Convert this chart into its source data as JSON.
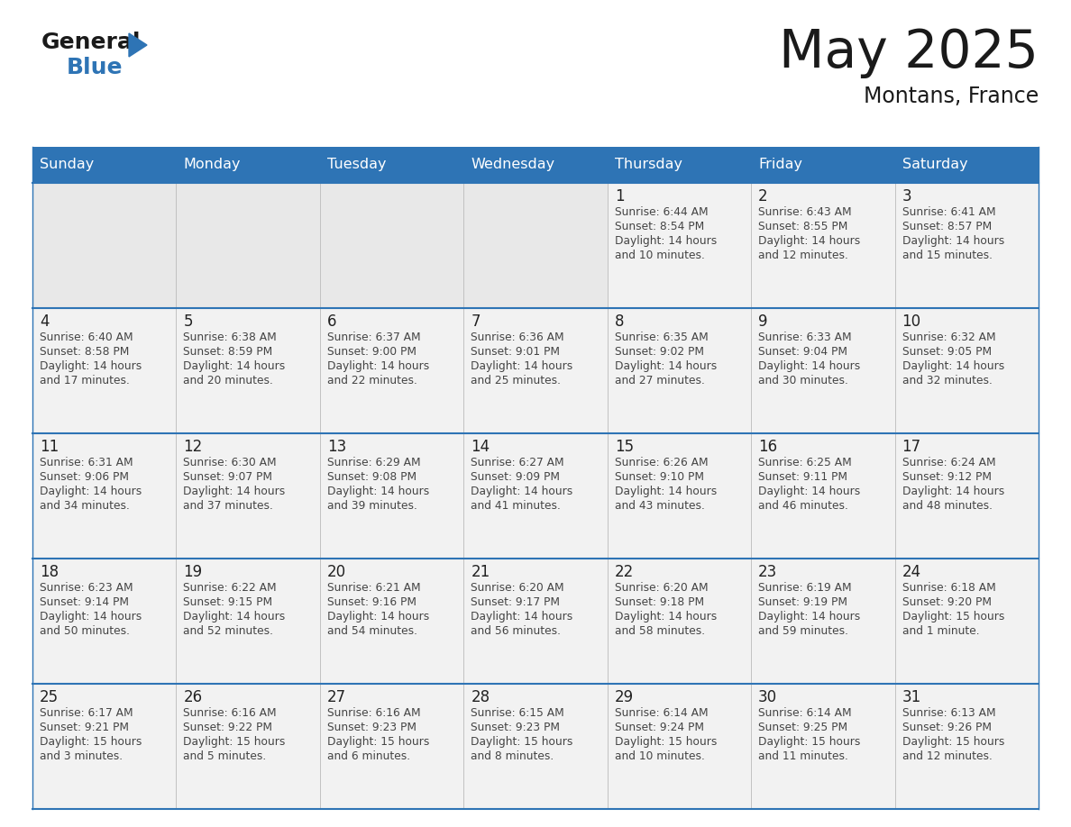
{
  "title": "May 2025",
  "subtitle": "Montans, France",
  "header_bg": "#2E74B5",
  "header_text_color": "#FFFFFF",
  "day_names": [
    "Sunday",
    "Monday",
    "Tuesday",
    "Wednesday",
    "Thursday",
    "Friday",
    "Saturday"
  ],
  "cell_bg": "#F2F2F2",
  "cell_bg_empty": "#E8E8E8",
  "text_color": "#444444",
  "day_number_color": "#222222",
  "line_color": "#2E74B5",
  "border_color": "#AAAAAA",
  "calendar": [
    [
      null,
      null,
      null,
      null,
      {
        "day": 1,
        "sunrise": "6:44 AM",
        "sunset": "8:54 PM",
        "daylight": "14 hours",
        "daylight2": "and 10 minutes."
      },
      {
        "day": 2,
        "sunrise": "6:43 AM",
        "sunset": "8:55 PM",
        "daylight": "14 hours",
        "daylight2": "and 12 minutes."
      },
      {
        "day": 3,
        "sunrise": "6:41 AM",
        "sunset": "8:57 PM",
        "daylight": "14 hours",
        "daylight2": "and 15 minutes."
      }
    ],
    [
      {
        "day": 4,
        "sunrise": "6:40 AM",
        "sunset": "8:58 PM",
        "daylight": "14 hours",
        "daylight2": "and 17 minutes."
      },
      {
        "day": 5,
        "sunrise": "6:38 AM",
        "sunset": "8:59 PM",
        "daylight": "14 hours",
        "daylight2": "and 20 minutes."
      },
      {
        "day": 6,
        "sunrise": "6:37 AM",
        "sunset": "9:00 PM",
        "daylight": "14 hours",
        "daylight2": "and 22 minutes."
      },
      {
        "day": 7,
        "sunrise": "6:36 AM",
        "sunset": "9:01 PM",
        "daylight": "14 hours",
        "daylight2": "and 25 minutes."
      },
      {
        "day": 8,
        "sunrise": "6:35 AM",
        "sunset": "9:02 PM",
        "daylight": "14 hours",
        "daylight2": "and 27 minutes."
      },
      {
        "day": 9,
        "sunrise": "6:33 AM",
        "sunset": "9:04 PM",
        "daylight": "14 hours",
        "daylight2": "and 30 minutes."
      },
      {
        "day": 10,
        "sunrise": "6:32 AM",
        "sunset": "9:05 PM",
        "daylight": "14 hours",
        "daylight2": "and 32 minutes."
      }
    ],
    [
      {
        "day": 11,
        "sunrise": "6:31 AM",
        "sunset": "9:06 PM",
        "daylight": "14 hours",
        "daylight2": "and 34 minutes."
      },
      {
        "day": 12,
        "sunrise": "6:30 AM",
        "sunset": "9:07 PM",
        "daylight": "14 hours",
        "daylight2": "and 37 minutes."
      },
      {
        "day": 13,
        "sunrise": "6:29 AM",
        "sunset": "9:08 PM",
        "daylight": "14 hours",
        "daylight2": "and 39 minutes."
      },
      {
        "day": 14,
        "sunrise": "6:27 AM",
        "sunset": "9:09 PM",
        "daylight": "14 hours",
        "daylight2": "and 41 minutes."
      },
      {
        "day": 15,
        "sunrise": "6:26 AM",
        "sunset": "9:10 PM",
        "daylight": "14 hours",
        "daylight2": "and 43 minutes."
      },
      {
        "day": 16,
        "sunrise": "6:25 AM",
        "sunset": "9:11 PM",
        "daylight": "14 hours",
        "daylight2": "and 46 minutes."
      },
      {
        "day": 17,
        "sunrise": "6:24 AM",
        "sunset": "9:12 PM",
        "daylight": "14 hours",
        "daylight2": "and 48 minutes."
      }
    ],
    [
      {
        "day": 18,
        "sunrise": "6:23 AM",
        "sunset": "9:14 PM",
        "daylight": "14 hours",
        "daylight2": "and 50 minutes."
      },
      {
        "day": 19,
        "sunrise": "6:22 AM",
        "sunset": "9:15 PM",
        "daylight": "14 hours",
        "daylight2": "and 52 minutes."
      },
      {
        "day": 20,
        "sunrise": "6:21 AM",
        "sunset": "9:16 PM",
        "daylight": "14 hours",
        "daylight2": "and 54 minutes."
      },
      {
        "day": 21,
        "sunrise": "6:20 AM",
        "sunset": "9:17 PM",
        "daylight": "14 hours",
        "daylight2": "and 56 minutes."
      },
      {
        "day": 22,
        "sunrise": "6:20 AM",
        "sunset": "9:18 PM",
        "daylight": "14 hours",
        "daylight2": "and 58 minutes."
      },
      {
        "day": 23,
        "sunrise": "6:19 AM",
        "sunset": "9:19 PM",
        "daylight": "14 hours",
        "daylight2": "and 59 minutes."
      },
      {
        "day": 24,
        "sunrise": "6:18 AM",
        "sunset": "9:20 PM",
        "daylight": "15 hours",
        "daylight2": "and 1 minute."
      }
    ],
    [
      {
        "day": 25,
        "sunrise": "6:17 AM",
        "sunset": "9:21 PM",
        "daylight": "15 hours",
        "daylight2": "and 3 minutes."
      },
      {
        "day": 26,
        "sunrise": "6:16 AM",
        "sunset": "9:22 PM",
        "daylight": "15 hours",
        "daylight2": "and 5 minutes."
      },
      {
        "day": 27,
        "sunrise": "6:16 AM",
        "sunset": "9:23 PM",
        "daylight": "15 hours",
        "daylight2": "and 6 minutes."
      },
      {
        "day": 28,
        "sunrise": "6:15 AM",
        "sunset": "9:23 PM",
        "daylight": "15 hours",
        "daylight2": "and 8 minutes."
      },
      {
        "day": 29,
        "sunrise": "6:14 AM",
        "sunset": "9:24 PM",
        "daylight": "15 hours",
        "daylight2": "and 10 minutes."
      },
      {
        "day": 30,
        "sunrise": "6:14 AM",
        "sunset": "9:25 PM",
        "daylight": "15 hours",
        "daylight2": "and 11 minutes."
      },
      {
        "day": 31,
        "sunrise": "6:13 AM",
        "sunset": "9:26 PM",
        "daylight": "15 hours",
        "daylight2": "and 12 minutes."
      }
    ]
  ]
}
